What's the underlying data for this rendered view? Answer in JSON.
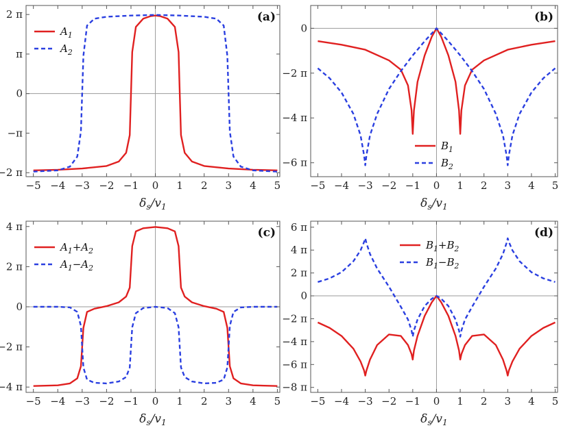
{
  "figure": {
    "colors": {
      "series1": "#e02020",
      "series2": "#2a3fe0",
      "frame": "#555555",
      "zero_axis": "#9a9a9a"
    },
    "xlabel": "δs/v1",
    "xticks": [
      "−5",
      "−4",
      "−3",
      "−2",
      "−1",
      "0",
      "1",
      "2",
      "3",
      "4",
      "5"
    ]
  },
  "chart_data": [
    {
      "type": "line",
      "panel_label": "(a)",
      "xlabel": "δs/v1",
      "xlim": [
        -5.3,
        5.1
      ],
      "ylim": [
        -6.6,
        7.0
      ],
      "yticks": [
        {
          "value": 6.283,
          "label": "2 π"
        },
        {
          "value": 3.1416,
          "label": "π"
        },
        {
          "value": 0,
          "label": "0"
        },
        {
          "value": -3.1416,
          "label": "−π"
        },
        {
          "value": -6.283,
          "label": "−2 π"
        }
      ],
      "legend": {
        "position": "top-left",
        "entries": [
          "A1",
          "A2"
        ]
      },
      "series": [
        {
          "name": "A1",
          "style": "solid",
          "color": "#e02020",
          "x": [
            -5,
            -4,
            -3,
            -2,
            -1.5,
            -1.2,
            -1.05,
            -1.0,
            -0.95,
            -0.8,
            -0.5,
            -0.2,
            0,
            0.2,
            0.5,
            0.8,
            0.95,
            1.0,
            1.05,
            1.2,
            1.5,
            2,
            3,
            4,
            5
          ],
          "y": [
            -6.1,
            -6.05,
            -5.95,
            -5.75,
            -5.4,
            -4.7,
            -3.3,
            0,
            3.3,
            5.3,
            5.95,
            6.15,
            6.2,
            6.15,
            5.95,
            5.3,
            3.3,
            0,
            -3.3,
            -4.7,
            -5.4,
            -5.75,
            -5.95,
            -6.05,
            -6.1
          ]
        },
        {
          "name": "A2",
          "style": "dashed",
          "color": "#2a3fe0",
          "x": [
            -5,
            -4,
            -3.5,
            -3.2,
            -3.05,
            -3.0,
            -2.95,
            -2.8,
            -2.5,
            -2,
            -1,
            0,
            1,
            2,
            2.5,
            2.8,
            2.95,
            3.0,
            3.05,
            3.2,
            3.5,
            4,
            5
          ],
          "y": [
            -6.2,
            -6.1,
            -5.8,
            -5.0,
            -3.0,
            0,
            3.0,
            5.4,
            5.95,
            6.1,
            6.2,
            6.25,
            6.2,
            6.1,
            5.95,
            5.4,
            3.0,
            0,
            -3.0,
            -5.0,
            -5.8,
            -6.1,
            -6.2
          ]
        }
      ]
    },
    {
      "type": "line",
      "panel_label": "(b)",
      "xlabel": "δs/v1",
      "xlim": [
        -5.3,
        5.1
      ],
      "ylim": [
        -20.8,
        3.2
      ],
      "yticks": [
        {
          "value": 0,
          "label": "0"
        },
        {
          "value": -6.283,
          "label": "−2 π"
        },
        {
          "value": -12.566,
          "label": "−4 π"
        },
        {
          "value": -18.85,
          "label": "−6 π"
        }
      ],
      "legend": {
        "position": "bottom-center",
        "entries": [
          "B1",
          "B2"
        ]
      },
      "series": [
        {
          "name": "B1",
          "style": "solid",
          "color": "#e02020",
          "x": [
            -5,
            -4,
            -3,
            -2,
            -1.5,
            -1.2,
            -1.05,
            -1.0,
            -0.95,
            -0.8,
            -0.5,
            -0.2,
            0,
            0.2,
            0.5,
            0.8,
            0.95,
            1.0,
            1.05,
            1.2,
            1.5,
            2,
            3,
            4,
            5
          ],
          "y": [
            -1.8,
            -2.3,
            -3.0,
            -4.5,
            -5.8,
            -8.0,
            -11.5,
            -14.8,
            -11.5,
            -7.5,
            -3.8,
            -1.2,
            0,
            -1.2,
            -3.8,
            -7.5,
            -11.5,
            -14.8,
            -11.5,
            -8.0,
            -5.8,
            -4.5,
            -3.0,
            -2.3,
            -1.8
          ]
        },
        {
          "name": "B2",
          "style": "dashed",
          "color": "#2a3fe0",
          "x": [
            -5,
            -4.5,
            -4,
            -3.5,
            -3.2,
            -3.05,
            -3.0,
            -2.95,
            -2.8,
            -2.5,
            -2,
            -1.5,
            -1,
            -0.5,
            0,
            0.5,
            1,
            1.5,
            2,
            2.5,
            2.8,
            2.95,
            3.0,
            3.05,
            3.2,
            3.5,
            4,
            4.5,
            5
          ],
          "y": [
            -5.6,
            -7.0,
            -9.0,
            -12.0,
            -15.0,
            -17.8,
            -19.2,
            -17.8,
            -15.0,
            -12.0,
            -8.5,
            -6.0,
            -3.8,
            -1.8,
            0,
            -1.8,
            -3.8,
            -6.0,
            -8.5,
            -12.0,
            -15.0,
            -17.8,
            -19.2,
            -17.8,
            -15.0,
            -12.0,
            -9.0,
            -7.0,
            -5.6
          ]
        }
      ]
    },
    {
      "type": "line",
      "panel_label": "(c)",
      "xlabel": "δs/v1",
      "xlim": [
        -5.3,
        5.1
      ],
      "ylim": [
        -13.4,
        13.4
      ],
      "yticks": [
        {
          "value": 12.566,
          "label": "4 π"
        },
        {
          "value": 6.283,
          "label": "2 π"
        },
        {
          "value": 0,
          "label": "0"
        },
        {
          "value": -6.283,
          "label": "−2 π"
        },
        {
          "value": -12.566,
          "label": "−4 π"
        }
      ],
      "legend": {
        "position": "top-left",
        "entries": [
          "A1+A2",
          "A1−A2"
        ]
      },
      "series": [
        {
          "name": "A1+A2",
          "style": "solid",
          "color": "#e02020",
          "x": [
            -5,
            -4,
            -3.5,
            -3.2,
            -3.05,
            -3.0,
            -2.95,
            -2.8,
            -2.5,
            -2,
            -1.5,
            -1.2,
            -1.05,
            -1.0,
            -0.95,
            -0.8,
            -0.5,
            0,
            0.5,
            0.8,
            0.95,
            1.0,
            1.05,
            1.2,
            1.5,
            2,
            2.5,
            2.8,
            2.95,
            3.0,
            3.05,
            3.2,
            3.5,
            4,
            5
          ],
          "y": [
            -12.4,
            -12.3,
            -12.0,
            -11.2,
            -9.3,
            -6.3,
            -3.3,
            -0.8,
            -0.3,
            0.1,
            0.7,
            1.6,
            3.0,
            6.3,
            9.5,
            11.8,
            12.3,
            12.5,
            12.3,
            11.8,
            9.5,
            6.3,
            3.0,
            1.6,
            0.7,
            0.1,
            -0.3,
            -0.8,
            -3.3,
            -6.3,
            -9.3,
            -11.2,
            -12.0,
            -12.3,
            -12.4
          ]
        },
        {
          "name": "A1−A2",
          "style": "dashed",
          "color": "#2a3fe0",
          "x": [
            -5,
            -4,
            -3.5,
            -3.2,
            -3.05,
            -3.0,
            -2.95,
            -2.8,
            -2.5,
            -2,
            -1.5,
            -1.2,
            -1.05,
            -1.0,
            -0.95,
            -0.8,
            -0.5,
            0,
            0.5,
            0.8,
            0.95,
            1.0,
            1.05,
            1.2,
            1.5,
            2,
            2.5,
            2.8,
            2.95,
            3.0,
            3.05,
            3.2,
            3.5,
            4,
            5
          ],
          "y": [
            0,
            0,
            -0.1,
            -0.8,
            -3.0,
            -6.3,
            -9.5,
            -11.4,
            -11.9,
            -12.0,
            -11.7,
            -11.0,
            -9.5,
            -6.3,
            -3.2,
            -1.0,
            -0.2,
            0,
            -0.2,
            -1.0,
            -3.2,
            -6.3,
            -9.5,
            -11.0,
            -11.7,
            -12.0,
            -11.9,
            -11.4,
            -9.5,
            -6.3,
            -3.0,
            -0.8,
            -0.1,
            0,
            0
          ]
        }
      ]
    },
    {
      "type": "line",
      "panel_label": "(d)",
      "xlabel": "δs/v1",
      "xlim": [
        -5.3,
        5.1
      ],
      "ylim": [
        -26.5,
        20.5
      ],
      "yticks": [
        {
          "value": 18.85,
          "label": "6 π"
        },
        {
          "value": 12.566,
          "label": "4 π"
        },
        {
          "value": 6.283,
          "label": "2 π"
        },
        {
          "value": 0,
          "label": "0"
        },
        {
          "value": -6.283,
          "label": "−2 π"
        },
        {
          "value": -12.566,
          "label": "−4 π"
        },
        {
          "value": -18.85,
          "label": "−6 π"
        },
        {
          "value": -25.13,
          "label": "−8 π"
        }
      ],
      "legend": {
        "position": "top-center",
        "entries": [
          "B1+B2",
          "B1−B2"
        ]
      },
      "series": [
        {
          "name": "B1+B2",
          "style": "solid",
          "color": "#e02020",
          "x": [
            -5,
            -4.5,
            -4,
            -3.5,
            -3.2,
            -3.05,
            -3.0,
            -2.95,
            -2.8,
            -2.5,
            -2,
            -1.5,
            -1.2,
            -1.05,
            -1.0,
            -0.95,
            -0.8,
            -0.5,
            -0.2,
            0,
            0.2,
            0.5,
            0.8,
            0.95,
            1.0,
            1.05,
            1.2,
            1.5,
            2,
            2.5,
            2.8,
            2.95,
            3.0,
            3.05,
            3.2,
            3.5,
            4,
            4.5,
            5
          ],
          "y": [
            -7.3,
            -8.8,
            -11.0,
            -14.5,
            -18.0,
            -20.5,
            -21.9,
            -20.5,
            -17.5,
            -13.5,
            -10.6,
            -11.0,
            -13.5,
            -16.0,
            -17.5,
            -15.0,
            -11.0,
            -5.5,
            -1.8,
            0,
            -1.8,
            -5.5,
            -11.0,
            -15.0,
            -17.5,
            -16.0,
            -13.5,
            -11.0,
            -10.6,
            -13.5,
            -17.5,
            -20.5,
            -21.9,
            -20.5,
            -18.0,
            -14.5,
            -11.0,
            -8.8,
            -7.3
          ]
        },
        {
          "name": "B1−B2",
          "style": "dashed",
          "color": "#2a3fe0",
          "x": [
            -5,
            -4.5,
            -4,
            -3.5,
            -3.2,
            -3.05,
            -3.0,
            -2.95,
            -2.8,
            -2.5,
            -2,
            -1.5,
            -1.2,
            -1.05,
            -1.0,
            -0.95,
            -0.8,
            -0.5,
            -0.2,
            0,
            0.2,
            0.5,
            0.8,
            0.95,
            1.0,
            1.05,
            1.2,
            1.5,
            2,
            2.5,
            2.8,
            2.95,
            3.0,
            3.05,
            3.2,
            3.5,
            4,
            4.5,
            5
          ],
          "y": [
            3.8,
            4.8,
            6.5,
            9.5,
            12.5,
            14.8,
            15.8,
            14.5,
            11.5,
            7.5,
            2.5,
            -3.0,
            -6.5,
            -9.5,
            -11.2,
            -9.5,
            -6.5,
            -2.8,
            -0.8,
            0,
            -0.8,
            -2.8,
            -6.5,
            -9.5,
            -11.2,
            -9.5,
            -6.5,
            -3.0,
            2.5,
            7.5,
            11.5,
            14.5,
            15.8,
            14.8,
            12.5,
            9.5,
            6.5,
            4.8,
            3.8
          ]
        }
      ]
    }
  ]
}
